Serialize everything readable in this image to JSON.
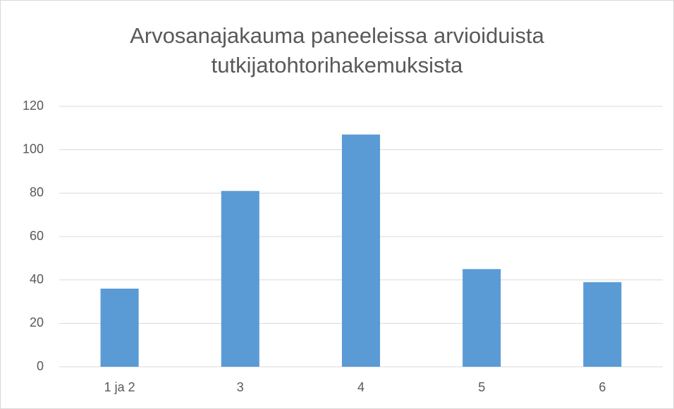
{
  "chart_data": {
    "type": "bar",
    "title": "Arvosanajakauma paneeleissa arvioiduista tutkijatohtorihakemuksista",
    "categories": [
      "1 ja 2",
      "3",
      "4",
      "5",
      "6"
    ],
    "values": [
      36,
      81,
      107,
      45,
      39
    ],
    "color": "#5b9bd5",
    "ylim": [
      0,
      120
    ],
    "yticks": [
      0,
      20,
      40,
      60,
      80,
      100,
      120
    ],
    "grid": true
  }
}
